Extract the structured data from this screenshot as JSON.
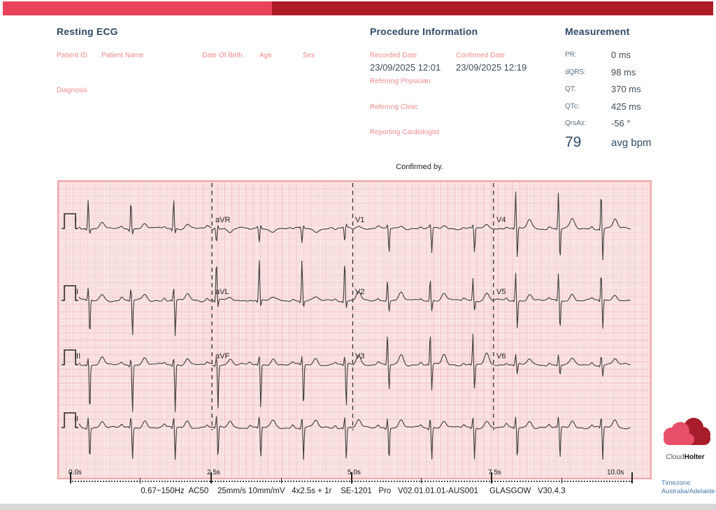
{
  "header": {
    "resting_ecg_title": "Resting ECG",
    "procedure_title": "Procedure Information",
    "measurement_title": "Measurement"
  },
  "patient": {
    "patient_id_label": "Patient ID",
    "patient_name_label": "Patient Name",
    "date_of_birth_label": "Date Of Birth",
    "age_label": "Age",
    "sex_label": "Sex",
    "diagnosis_label": "Diagnosis"
  },
  "procedure": {
    "recorded_date_label": "Recorded Date",
    "recorded_date": "23/09/2025 12:01",
    "confirmed_date_label": "Confirmed Date",
    "confirmed_date": "23/09/2025 12:19",
    "referring_physician_label": "Referring Physician",
    "referring_clinic_label": "Referring Clinic",
    "reporting_cardiologist_label": "Reporting Cardiologist"
  },
  "measurement": {
    "rows": [
      {
        "label": "PR:",
        "value": "0 ms"
      },
      {
        "label": "dQRS:",
        "value": "98 ms"
      },
      {
        "label": "QT:",
        "value": "370 ms"
      },
      {
        "label": "QTc:",
        "value": "425 ms"
      },
      {
        "label": "QrsAx:",
        "value": "-56 °"
      }
    ],
    "bpm_value": "79",
    "bpm_label": "avg bpm"
  },
  "confirmed_by": "Confirmed by.",
  "ecg": {
    "heart_rate_bpm": 79,
    "time_labels": [
      "0.0s",
      "2.5s",
      "5.0s",
      "7.5s",
      "10.0s"
    ],
    "footer_settings": "0.67~150Hz  AC50    25mm/s 10mm/mV   4x2.5s + 1r    SE-1201   Pro   V02.01.01.01-AUS001     GLASGOW   V30.4.3",
    "trace_color": "#3B3B3B",
    "leads": [
      {
        "label": "I",
        "row": 0,
        "col": 0,
        "m": {
          "p": 3,
          "q": -3,
          "r": 42,
          "s": -7,
          "t": 7
        }
      },
      {
        "label": "aVR",
        "row": 0,
        "col": 1,
        "m": {
          "p": -2,
          "q": 2,
          "r": -20,
          "s": 5,
          "t": -5
        }
      },
      {
        "label": "V1",
        "row": 0,
        "col": 2,
        "m": {
          "p": 2,
          "q": 0,
          "r": 5,
          "s": -36,
          "t": 4
        }
      },
      {
        "label": "V4",
        "row": 0,
        "col": 3,
        "m": {
          "p": 3,
          "q": -2,
          "r": 52,
          "s": -46,
          "t": 13
        }
      },
      {
        "label": "II",
        "row": 1,
        "col": 0,
        "m": {
          "p": 4,
          "q": -2,
          "r": 17,
          "s": -52,
          "t": 9
        }
      },
      {
        "label": "aVL",
        "row": 1,
        "col": 1,
        "m": {
          "p": 2,
          "q": -3,
          "r": 58,
          "s": -10,
          "t": 4
        }
      },
      {
        "label": "V2",
        "row": 1,
        "col": 2,
        "m": {
          "p": 3,
          "q": 0,
          "r": 32,
          "s": -15,
          "t": 11
        }
      },
      {
        "label": "V5",
        "row": 1,
        "col": 3,
        "m": {
          "p": 3,
          "q": -2,
          "r": 40,
          "s": -42,
          "t": 9
        }
      },
      {
        "label": "III",
        "row": 2,
        "col": 0,
        "m": {
          "p": 3,
          "q": -2,
          "r": 10,
          "s": -68,
          "t": 10
        }
      },
      {
        "label": "aVF",
        "row": 2,
        "col": 1,
        "m": {
          "p": 3,
          "q": -2,
          "r": 12,
          "s": -62,
          "t": 9
        }
      },
      {
        "label": "V3",
        "row": 2,
        "col": 2,
        "m": {
          "p": 3,
          "q": -2,
          "r": 44,
          "s": -38,
          "t": 15
        }
      },
      {
        "label": "V6",
        "row": 2,
        "col": 3,
        "m": {
          "p": 3,
          "q": -2,
          "r": 14,
          "s": -16,
          "t": 8
        }
      }
    ],
    "rhythm_lead": {
      "label": "II",
      "row": 3,
      "m": {
        "p": 4,
        "q": -2,
        "r": 15,
        "s": -46,
        "t": 10
      }
    }
  },
  "branding": {
    "logo_cloud": "Cloud",
    "logo_holter": "Holter",
    "timezone_label": "Timezone",
    "timezone_value": "Australia/Adelaide"
  },
  "colors": {
    "bar_light": "#E8435A",
    "bar_dark": "#AC1B26",
    "heading_navy": "#2D4A66",
    "label_salmon": "#F5898C",
    "grid_pink": "#F6CBCB"
  }
}
